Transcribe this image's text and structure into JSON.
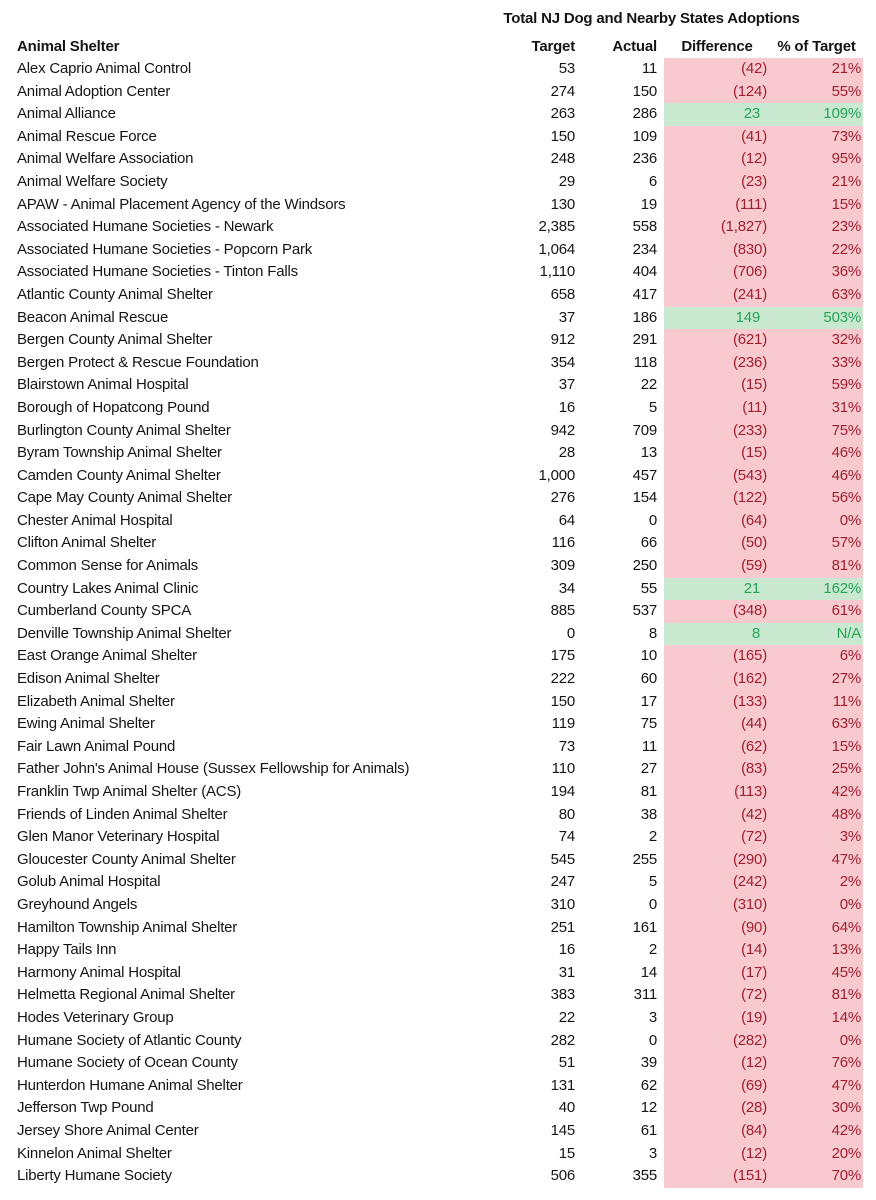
{
  "chart_data": {
    "type": "table",
    "title": "Total NJ Dog and Nearby States Adoptions",
    "columns": [
      "Animal Shelter",
      "Target",
      "Actual",
      "Difference",
      "% of Target"
    ],
    "negative_number_format": "parentheses",
    "conditional_formatting": {
      "negative_fill": "#f8cad0",
      "negative_text": "#a02030",
      "positive_fill": "#c8e9cf",
      "positive_text": "#28a457"
    },
    "rows": [
      {
        "name": "Alex Caprio Animal Control",
        "target": "53",
        "actual": "11",
        "difference": "(42)",
        "pct": "21%"
      },
      {
        "name": "Animal Adoption Center",
        "target": "274",
        "actual": "150",
        "difference": "(124)",
        "pct": "55%"
      },
      {
        "name": "Animal Alliance",
        "target": "263",
        "actual": "286",
        "difference": "23",
        "pct": "109%"
      },
      {
        "name": "Animal Rescue Force",
        "target": "150",
        "actual": "109",
        "difference": "(41)",
        "pct": "73%"
      },
      {
        "name": "Animal Welfare Association",
        "target": "248",
        "actual": "236",
        "difference": "(12)",
        "pct": "95%"
      },
      {
        "name": "Animal Welfare Society",
        "target": "29",
        "actual": "6",
        "difference": "(23)",
        "pct": "21%"
      },
      {
        "name": "APAW - Animal Placement Agency of the Windsors",
        "target": "130",
        "actual": "19",
        "difference": "(111)",
        "pct": "15%"
      },
      {
        "name": "Associated Humane Societies - Newark",
        "target": "2,385",
        "actual": "558",
        "difference": "(1,827)",
        "pct": "23%"
      },
      {
        "name": "Associated Humane Societies - Popcorn Park",
        "target": "1,064",
        "actual": "234",
        "difference": "(830)",
        "pct": "22%"
      },
      {
        "name": "Associated Humane Societies - Tinton Falls",
        "target": "1,110",
        "actual": "404",
        "difference": "(706)",
        "pct": "36%"
      },
      {
        "name": "Atlantic County Animal Shelter",
        "target": "658",
        "actual": "417",
        "difference": "(241)",
        "pct": "63%"
      },
      {
        "name": "Beacon Animal Rescue",
        "target": "37",
        "actual": "186",
        "difference": "149",
        "pct": "503%"
      },
      {
        "name": "Bergen County Animal Shelter",
        "target": "912",
        "actual": "291",
        "difference": "(621)",
        "pct": "32%"
      },
      {
        "name": "Bergen Protect & Rescue Foundation",
        "target": "354",
        "actual": "118",
        "difference": "(236)",
        "pct": "33%"
      },
      {
        "name": "Blairstown Animal Hospital",
        "target": "37",
        "actual": "22",
        "difference": "(15)",
        "pct": "59%"
      },
      {
        "name": "Borough of Hopatcong Pound",
        "target": "16",
        "actual": "5",
        "difference": "(11)",
        "pct": "31%"
      },
      {
        "name": "Burlington County Animal Shelter",
        "target": "942",
        "actual": "709",
        "difference": "(233)",
        "pct": "75%"
      },
      {
        "name": "Byram Township Animal Shelter",
        "target": "28",
        "actual": "13",
        "difference": "(15)",
        "pct": "46%"
      },
      {
        "name": "Camden County Animal Shelter",
        "target": "1,000",
        "actual": "457",
        "difference": "(543)",
        "pct": "46%"
      },
      {
        "name": "Cape May County Animal Shelter",
        "target": "276",
        "actual": "154",
        "difference": "(122)",
        "pct": "56%"
      },
      {
        "name": "Chester Animal Hospital",
        "target": "64",
        "actual": "0",
        "difference": "(64)",
        "pct": "0%"
      },
      {
        "name": "Clifton Animal Shelter",
        "target": "116",
        "actual": "66",
        "difference": "(50)",
        "pct": "57%"
      },
      {
        "name": "Common Sense for Animals",
        "target": "309",
        "actual": "250",
        "difference": "(59)",
        "pct": "81%"
      },
      {
        "name": "Country Lakes Animal Clinic",
        "target": "34",
        "actual": "55",
        "difference": "21",
        "pct": "162%"
      },
      {
        "name": "Cumberland County SPCA",
        "target": "885",
        "actual": "537",
        "difference": "(348)",
        "pct": "61%"
      },
      {
        "name": "Denville Township Animal Shelter",
        "target": "0",
        "actual": "8",
        "difference": "8",
        "pct": "N/A"
      },
      {
        "name": "East Orange Animal Shelter",
        "target": "175",
        "actual": "10",
        "difference": "(165)",
        "pct": "6%"
      },
      {
        "name": "Edison Animal Shelter",
        "target": "222",
        "actual": "60",
        "difference": "(162)",
        "pct": "27%"
      },
      {
        "name": "Elizabeth Animal Shelter",
        "target": "150",
        "actual": "17",
        "difference": "(133)",
        "pct": "11%"
      },
      {
        "name": "Ewing Animal Shelter",
        "target": "119",
        "actual": "75",
        "difference": "(44)",
        "pct": "63%"
      },
      {
        "name": "Fair Lawn Animal Pound",
        "target": "73",
        "actual": "11",
        "difference": "(62)",
        "pct": "15%"
      },
      {
        "name": "Father John's Animal House (Sussex Fellowship for Animals)",
        "target": "110",
        "actual": "27",
        "difference": "(83)",
        "pct": "25%"
      },
      {
        "name": "Franklin Twp Animal Shelter (ACS)",
        "target": "194",
        "actual": "81",
        "difference": "(113)",
        "pct": "42%"
      },
      {
        "name": "Friends of Linden Animal Shelter",
        "target": "80",
        "actual": "38",
        "difference": "(42)",
        "pct": "48%"
      },
      {
        "name": "Glen Manor Veterinary Hospital",
        "target": "74",
        "actual": "2",
        "difference": "(72)",
        "pct": "3%"
      },
      {
        "name": "Gloucester County Animal Shelter",
        "target": "545",
        "actual": "255",
        "difference": "(290)",
        "pct": "47%"
      },
      {
        "name": "Golub Animal Hospital",
        "target": "247",
        "actual": "5",
        "difference": "(242)",
        "pct": "2%"
      },
      {
        "name": "Greyhound Angels",
        "target": "310",
        "actual": "0",
        "difference": "(310)",
        "pct": "0%"
      },
      {
        "name": "Hamilton Township Animal Shelter",
        "target": "251",
        "actual": "161",
        "difference": "(90)",
        "pct": "64%"
      },
      {
        "name": "Happy Tails Inn",
        "target": "16",
        "actual": "2",
        "difference": "(14)",
        "pct": "13%"
      },
      {
        "name": "Harmony Animal Hospital",
        "target": "31",
        "actual": "14",
        "difference": "(17)",
        "pct": "45%"
      },
      {
        "name": "Helmetta Regional Animal Shelter",
        "target": "383",
        "actual": "311",
        "difference": "(72)",
        "pct": "81%"
      },
      {
        "name": "Hodes Veterinary Group",
        "target": "22",
        "actual": "3",
        "difference": "(19)",
        "pct": "14%"
      },
      {
        "name": "Humane Society of Atlantic County",
        "target": "282",
        "actual": "0",
        "difference": "(282)",
        "pct": "0%"
      },
      {
        "name": "Humane Society of Ocean County",
        "target": "51",
        "actual": "39",
        "difference": "(12)",
        "pct": "76%"
      },
      {
        "name": "Hunterdon Humane Animal Shelter",
        "target": "131",
        "actual": "62",
        "difference": "(69)",
        "pct": "47%"
      },
      {
        "name": "Jefferson Twp Pound",
        "target": "40",
        "actual": "12",
        "difference": "(28)",
        "pct": "30%"
      },
      {
        "name": "Jersey Shore Animal Center",
        "target": "145",
        "actual": "61",
        "difference": "(84)",
        "pct": "42%"
      },
      {
        "name": "Kinnelon Animal Shelter",
        "target": "15",
        "actual": "3",
        "difference": "(12)",
        "pct": "20%"
      },
      {
        "name": "Liberty Humane Society",
        "target": "506",
        "actual": "355",
        "difference": "(151)",
        "pct": "70%"
      }
    ]
  }
}
